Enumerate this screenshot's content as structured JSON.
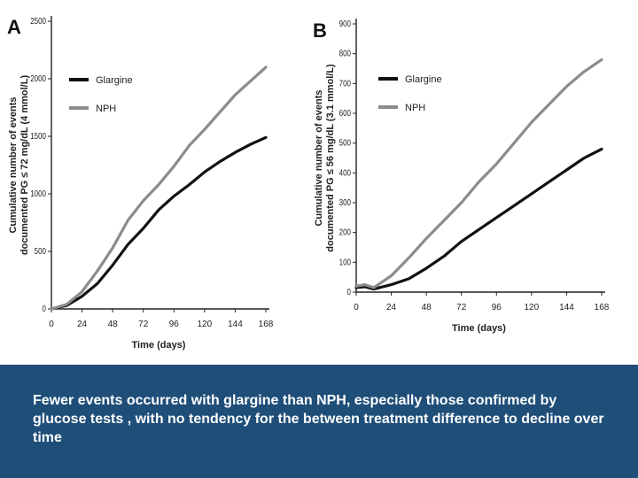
{
  "colors": {
    "glargine": "#111111",
    "nph": "#8c8c8c",
    "footer_bg": "#1f4e79",
    "axis": "#222222"
  },
  "footer": {
    "caption": "Fewer events occurred with glargine than NPH, especially those confirmed by glucose tests , with no tendency for the between treatment difference to decline over time"
  },
  "chart_data": [
    {
      "type": "line",
      "panel_label": "A",
      "xlabel": "Time (days)",
      "ylabel_line1": "Cumulative number of events",
      "ylabel_line2": "documented PG ≤ 72 mg/dL (4 mmol/L)",
      "xlim": [
        0,
        168
      ],
      "ylim": [
        0,
        2500
      ],
      "xticks": [
        0,
        24,
        48,
        72,
        96,
        120,
        144,
        168
      ],
      "yticks": [
        0,
        500,
        1000,
        1500,
        2000,
        2500
      ],
      "legend_position": "top-left",
      "series": [
        {
          "name": "Glargine",
          "color": "#111111",
          "x": [
            0,
            12,
            24,
            36,
            48,
            60,
            72,
            84,
            96,
            108,
            120,
            132,
            144,
            156,
            168
          ],
          "y": [
            0,
            30,
            110,
            220,
            380,
            560,
            700,
            860,
            980,
            1080,
            1190,
            1280,
            1360,
            1430,
            1490
          ]
        },
        {
          "name": "NPH",
          "color": "#8c8c8c",
          "x": [
            0,
            12,
            24,
            36,
            48,
            60,
            72,
            84,
            96,
            108,
            120,
            132,
            144,
            156,
            168
          ],
          "y": [
            0,
            40,
            150,
            330,
            530,
            770,
            940,
            1080,
            1240,
            1420,
            1560,
            1710,
            1860,
            1980,
            2100
          ]
        }
      ]
    },
    {
      "type": "line",
      "panel_label": "B",
      "xlabel": "Time (days)",
      "ylabel_line1": "Cumulative number of events",
      "ylabel_line2": "documented PG ≤ 56 mg/dL (3.1 mmol/L)",
      "xlim": [
        0,
        168
      ],
      "ylim": [
        0,
        900
      ],
      "xticks": [
        0,
        24,
        48,
        72,
        96,
        120,
        144,
        168
      ],
      "yticks": [
        0,
        100,
        200,
        300,
        400,
        500,
        600,
        700,
        800,
        900
      ],
      "legend_position": "top-left",
      "series": [
        {
          "name": "Glargine",
          "color": "#111111",
          "x": [
            0,
            6,
            12,
            24,
            36,
            48,
            60,
            72,
            84,
            96,
            108,
            120,
            132,
            144,
            156,
            168
          ],
          "y": [
            15,
            18,
            10,
            25,
            45,
            80,
            120,
            170,
            210,
            250,
            290,
            330,
            370,
            410,
            450,
            480
          ]
        },
        {
          "name": "NPH",
          "color": "#8c8c8c",
          "x": [
            0,
            6,
            12,
            24,
            36,
            48,
            60,
            72,
            84,
            96,
            108,
            120,
            132,
            144,
            156,
            168
          ],
          "y": [
            20,
            25,
            15,
            55,
            115,
            180,
            240,
            300,
            370,
            430,
            500,
            570,
            630,
            690,
            740,
            780
          ]
        }
      ]
    }
  ]
}
